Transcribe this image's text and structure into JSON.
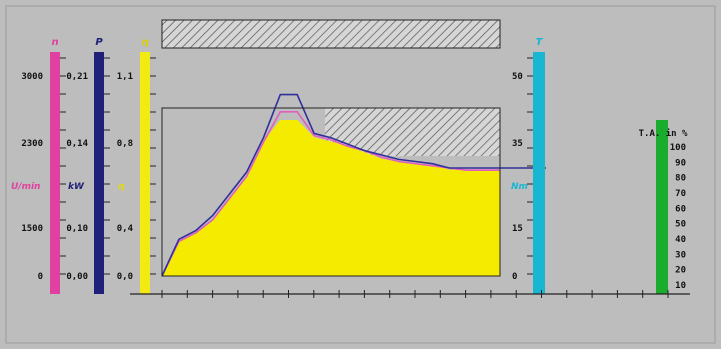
{
  "chart_data": {
    "type": "area",
    "title": "",
    "axes": {
      "n": {
        "letter": "n",
        "unit": "U/min",
        "ticks": [
          "3000",
          "2300",
          "1500",
          "0"
        ],
        "color": "#e040a0"
      },
      "P": {
        "letter": "P",
        "unit": "kW",
        "ticks": [
          "0,21",
          "0,14",
          "0,10",
          "0,00"
        ],
        "color": "#20207a"
      },
      "eta": {
        "letter": "η",
        "unit": "η",
        "ticks": [
          "1,1",
          "0,8",
          "0,4",
          "0,0"
        ],
        "color": "#f2ea10"
      },
      "T": {
        "letter": "T",
        "unit": "Nm",
        "ticks": [
          "50",
          "35",
          "15",
          "0"
        ],
        "color": "#19b6d2"
      },
      "TA": {
        "title": "T.A. in %",
        "ticks": [
          "100",
          "90",
          "80",
          "70",
          "60",
          "50",
          "40",
          "30",
          "20",
          "10"
        ],
        "color": "#1bab2e"
      }
    },
    "x_tick_count": 20,
    "hatched_band": {
      "top": true,
      "right_region": true
    },
    "series": [
      {
        "color": "#f5eb00",
        "fill": true,
        "x": [
          0,
          1,
          2,
          3,
          4,
          5,
          6,
          7,
          8,
          9,
          10,
          11,
          12,
          13,
          14,
          15,
          16,
          17,
          18,
          19,
          20
        ],
        "values": [
          0,
          16,
          20,
          26,
          36,
          46,
          62,
          72,
          72,
          64,
          62,
          60,
          57,
          54,
          53,
          52,
          51,
          49,
          49,
          49,
          49
        ]
      },
      {
        "color": "#e060c0",
        "fill": false,
        "x": [
          0,
          1,
          2,
          3,
          4,
          5,
          6,
          7,
          8,
          9,
          10,
          11,
          12,
          13,
          14,
          15,
          16,
          17,
          18,
          19,
          20
        ],
        "values": [
          0,
          16,
          20,
          26,
          36,
          46,
          62,
          76,
          76,
          65,
          63,
          60,
          58,
          55,
          53,
          52,
          51,
          50,
          49,
          49,
          49
        ]
      },
      {
        "color": "#30309a",
        "fill": false,
        "x": [
          0,
          1,
          2,
          3,
          4,
          5,
          6,
          7,
          8,
          9,
          10,
          11,
          12,
          13,
          14,
          15,
          16,
          17,
          18,
          19,
          20
        ],
        "values": [
          0,
          17,
          21,
          28,
          38,
          48,
          64,
          84,
          84,
          66,
          64,
          61,
          58,
          56,
          54,
          53,
          52,
          50,
          50,
          50,
          50
        ]
      }
    ],
    "ylim": [
      0,
      100
    ]
  }
}
